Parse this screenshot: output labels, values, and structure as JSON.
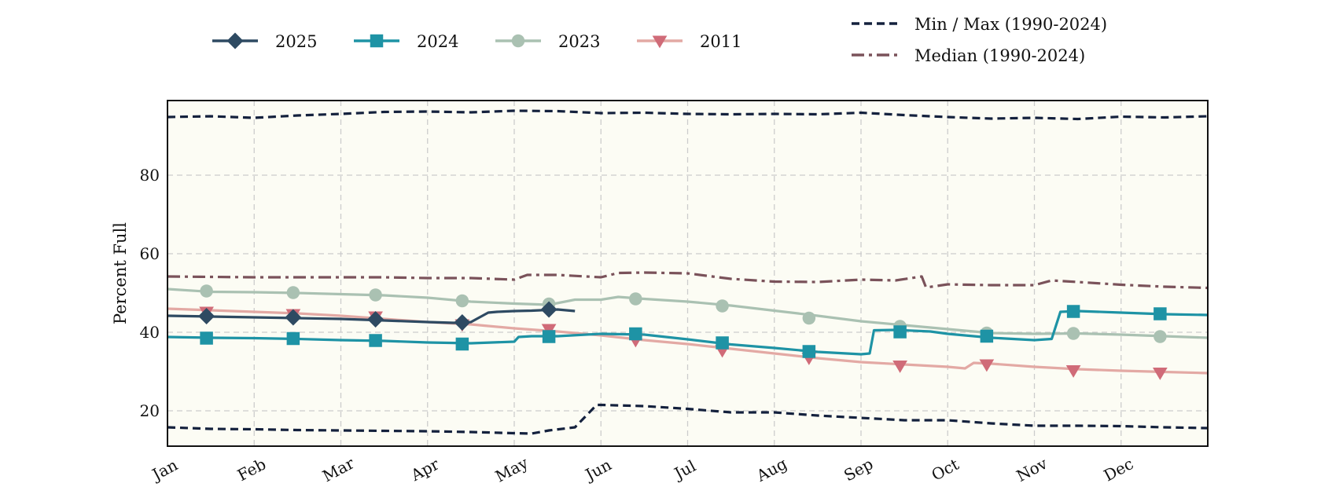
{
  "chart_data": {
    "type": "line",
    "ylabel": "Percent Full",
    "xlabel": "",
    "ylim": [
      11,
      99
    ],
    "xlim": [
      0,
      12
    ],
    "grid": true,
    "month_labels": [
      "Jan",
      "Feb",
      "Mar",
      "Apr",
      "May",
      "Jun",
      "Jul",
      "Aug",
      "Sep",
      "Oct",
      "Nov",
      "Dec"
    ],
    "y_ticks": [
      20,
      40,
      60,
      80
    ],
    "colors": {
      "background": "#fcfcf4",
      "grid": "#cccccc",
      "frame": "#111111"
    },
    "legend_position": "top",
    "series": [
      {
        "name": "2025",
        "color": "#2e4a62",
        "marker": "diamond",
        "style": "solid",
        "x": [
          0,
          0.5,
          1,
          1.5,
          2,
          2.5,
          3,
          3.3,
          3.5,
          3.7,
          3.8,
          4,
          4.2,
          4.5,
          4.7
        ],
        "y": [
          44.2,
          44.0,
          43.8,
          43.6,
          43.4,
          43.0,
          42.6,
          42.4,
          42.6,
          45.0,
          45.2,
          45.4,
          45.5,
          45.8,
          45.4
        ],
        "markers": [
          [
            0.45,
            44.1
          ],
          [
            1.45,
            43.8
          ],
          [
            2.4,
            43.3
          ],
          [
            3.4,
            42.5
          ],
          [
            4.4,
            45.8
          ]
        ]
      },
      {
        "name": "2024",
        "color": "#1e93a5",
        "marker": "square",
        "style": "solid",
        "x": [
          0,
          0.5,
          1,
          1.5,
          2,
          2.5,
          3,
          3.5,
          4,
          4.05,
          4.2,
          4.5,
          5,
          5.5,
          6,
          6.5,
          7,
          7.5,
          8,
          8.1,
          8.15,
          8.4,
          8.8,
          9,
          9.5,
          10,
          10.2,
          10.3,
          10.5,
          11,
          11.5,
          12
        ],
        "y": [
          38.8,
          38.6,
          38.5,
          38.3,
          38.0,
          37.8,
          37.4,
          37.2,
          37.6,
          38.8,
          39.0,
          39.0,
          39.6,
          39.4,
          38.2,
          36.9,
          36.0,
          35.0,
          34.4,
          34.6,
          40.5,
          40.6,
          40.2,
          39.6,
          38.6,
          38.0,
          38.3,
          45.2,
          45.4,
          45.0,
          44.6,
          44.4
        ],
        "markers": [
          [
            0.45,
            38.5
          ],
          [
            1.45,
            38.4
          ],
          [
            2.4,
            37.9
          ],
          [
            3.4,
            37.0
          ],
          [
            4.4,
            38.9
          ],
          [
            5.4,
            39.6
          ],
          [
            6.4,
            37.3
          ],
          [
            7.4,
            35.1
          ],
          [
            8.45,
            40.1
          ],
          [
            9.45,
            39.0
          ],
          [
            10.45,
            45.3
          ],
          [
            11.45,
            44.7
          ]
        ]
      },
      {
        "name": "2023",
        "color": "#aac1b2",
        "marker": "circle",
        "style": "solid",
        "x": [
          0,
          0.5,
          1,
          1.5,
          2,
          2.5,
          3,
          3.5,
          4,
          4.4,
          4.7,
          5,
          5.2,
          5.5,
          6,
          6.5,
          7,
          7.5,
          8,
          8.5,
          9,
          9.5,
          10,
          10.5,
          11,
          11.5,
          12
        ],
        "y": [
          51.0,
          50.3,
          50.2,
          50.0,
          49.7,
          49.4,
          48.8,
          47.8,
          47.3,
          47.0,
          48.3,
          48.3,
          49.0,
          48.5,
          47.8,
          46.8,
          45.5,
          44.2,
          42.8,
          41.8,
          40.8,
          39.8,
          39.6,
          39.7,
          39.4,
          39.0,
          38.6
        ],
        "markers": [
          [
            0.45,
            50.5
          ],
          [
            1.45,
            50.1
          ],
          [
            2.4,
            49.5
          ],
          [
            3.4,
            48.0
          ],
          [
            4.4,
            47.2
          ],
          [
            5.4,
            48.5
          ],
          [
            6.4,
            46.7
          ],
          [
            7.4,
            43.6
          ],
          [
            8.45,
            41.5
          ],
          [
            9.45,
            39.8
          ],
          [
            10.45,
            39.7
          ],
          [
            11.45,
            38.9
          ]
        ]
      },
      {
        "name": "2011",
        "color": "#e3a9a4",
        "marker_color": "#d06b78",
        "marker": "triangle-down",
        "style": "solid",
        "x": [
          0,
          0.5,
          1,
          1.5,
          2,
          2.5,
          3,
          3.5,
          4,
          4.5,
          5,
          5.5,
          6,
          6.5,
          7,
          7.5,
          8,
          8.5,
          9,
          9.2,
          9.3,
          9.5,
          10,
          10.5,
          11,
          11.5,
          12
        ],
        "y": [
          46.0,
          45.6,
          45.2,
          44.8,
          44.2,
          43.4,
          42.6,
          42.0,
          41.0,
          40.2,
          39.2,
          38.0,
          37.0,
          35.8,
          34.6,
          33.4,
          32.4,
          31.8,
          31.2,
          30.8,
          32.2,
          32.0,
          31.2,
          30.6,
          30.2,
          29.9,
          29.6
        ],
        "markers": [
          [
            0.45,
            45.2
          ],
          [
            1.45,
            44.6
          ],
          [
            2.4,
            44.0
          ],
          [
            3.4,
            42.0
          ],
          [
            4.4,
            40.8
          ],
          [
            5.4,
            38.0
          ],
          [
            6.4,
            35.4
          ],
          [
            7.4,
            33.5
          ],
          [
            8.45,
            31.5
          ],
          [
            9.45,
            31.8
          ],
          [
            10.45,
            30.3
          ],
          [
            11.45,
            29.7
          ]
        ]
      },
      {
        "name": "Min / Max (1990-2024)",
        "color": "#14213d",
        "style": "dashed",
        "x": [
          0,
          0.5,
          1,
          1.5,
          2,
          2.5,
          3,
          3.5,
          4,
          4.5,
          5,
          5.5,
          6,
          6.5,
          7,
          7.5,
          8,
          8.5,
          9,
          9.5,
          10,
          10.5,
          11,
          11.5,
          12
        ],
        "y": [
          94.8,
          95.0,
          94.6,
          95.2,
          95.6,
          96.1,
          96.2,
          96.0,
          96.4,
          96.3,
          95.8,
          95.9,
          95.6,
          95.5,
          95.6,
          95.5,
          95.9,
          95.3,
          94.8,
          94.4,
          94.6,
          94.3,
          94.9,
          94.7,
          95.0
        ]
      },
      {
        "name": "Min / Max (1990-2024)",
        "color": "#14213d",
        "style": "dashed",
        "x": [
          0,
          0.5,
          1,
          1.5,
          2,
          2.5,
          3,
          3.5,
          4,
          4.2,
          4.4,
          4.7,
          4.95,
          5,
          5.5,
          6,
          6.5,
          7,
          7.5,
          8,
          8.5,
          9,
          9.5,
          10,
          10.5,
          11,
          11.5,
          12
        ],
        "y": [
          15.8,
          15.4,
          15.3,
          15.1,
          15.0,
          14.9,
          14.8,
          14.6,
          14.3,
          14.2,
          15.0,
          15.8,
          21.5,
          21.5,
          21.2,
          20.5,
          19.6,
          19.6,
          18.8,
          18.2,
          17.6,
          17.6,
          16.8,
          16.2,
          16.2,
          16.1,
          15.8,
          15.6
        ]
      },
      {
        "name": "Median (1990-2024)",
        "color": "#7a525a",
        "style": "dashdot",
        "x": [
          0,
          0.5,
          1,
          1.5,
          2,
          2.5,
          3,
          3.5,
          4,
          4.15,
          4.5,
          5,
          5.2,
          5.5,
          6,
          6.5,
          7,
          7.5,
          8,
          8.4,
          8.7,
          8.75,
          9,
          9.5,
          10,
          10.2,
          10.5,
          11,
          11.5,
          12
        ],
        "y": [
          54.2,
          54.1,
          54.0,
          54.0,
          54.0,
          54.0,
          53.8,
          53.8,
          53.4,
          54.6,
          54.6,
          54.0,
          55.1,
          55.2,
          55.0,
          53.6,
          52.9,
          52.8,
          53.4,
          53.2,
          54.2,
          51.4,
          52.2,
          52.0,
          52.0,
          53.2,
          52.8,
          52.1,
          51.6,
          51.3
        ]
      }
    ],
    "legend": [
      {
        "label": "2025",
        "series": 0
      },
      {
        "label": "2024",
        "series": 1
      },
      {
        "label": "2023",
        "series": 2
      },
      {
        "label": "2011",
        "series": 3
      },
      {
        "label": "Min / Max (1990-2024)",
        "series": 4
      },
      {
        "label": "Median (1990-2024)",
        "series": 6
      }
    ]
  }
}
